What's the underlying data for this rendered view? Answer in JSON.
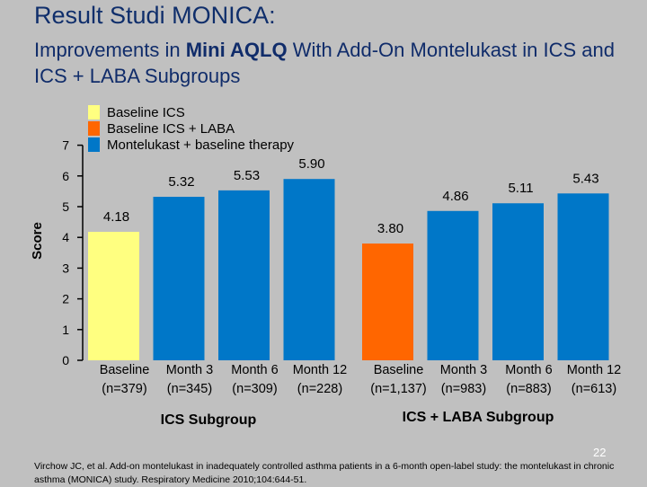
{
  "slide": {
    "title": "Result Studi MONICA:",
    "subtitle_pre": "Improvements in ",
    "subtitle_bold": "Mini AQLQ",
    "subtitle_post": " With Add-On Montelukast in ICS and ICS + LABA Subgroups",
    "page_number": "22",
    "citation": "Virchow JC, et al. Add-on montelukast in inadequately controlled asthma patients in a 6-month open-label study: the montelukast in chronic asthma (MONICA) study. Respiratory Medicine 2010;104:644-51."
  },
  "chart_data": {
    "type": "bar",
    "title": "Improvements in Mini AQLQ With Add-On Montelukast in ICS and ICS + LABA Subgroups",
    "xlabel": "",
    "ylabel": "Score",
    "ylim": [
      0,
      7
    ],
    "yticks": [
      "0",
      "1",
      "2",
      "3",
      "4",
      "5",
      "6",
      "7"
    ],
    "legend": [
      {
        "name": "Baseline ICS",
        "color": "#ffff80"
      },
      {
        "name": "Baseline ICS + LABA",
        "color": "#ff6600"
      },
      {
        "name": "Montelukast + baseline therapy",
        "color": "#0077c8"
      }
    ],
    "groups": [
      {
        "name": "ICS Subgroup",
        "bars": [
          {
            "label": "Baseline",
            "n": "(n=379)",
            "value": 4.18,
            "value_label": "4.18",
            "series": "Baseline ICS",
            "color": "#ffff80"
          },
          {
            "label": "Month 3",
            "n": "(n=345)",
            "value": 5.32,
            "value_label": "5.32",
            "series": "Montelukast + baseline therapy",
            "color": "#0077c8"
          },
          {
            "label": "Month 6",
            "n": "(n=309)",
            "value": 5.53,
            "value_label": "5.53",
            "series": "Montelukast + baseline therapy",
            "color": "#0077c8"
          },
          {
            "label": "Month 12",
            "n": "(n=228)",
            "value": 5.9,
            "value_label": "5.90",
            "series": "Montelukast + baseline therapy",
            "color": "#0077c8"
          }
        ]
      },
      {
        "name": "ICS + LABA Subgroup",
        "bars": [
          {
            "label": "Baseline",
            "n": "(n=1,137)",
            "value": 3.8,
            "value_label": "3.80",
            "series": "Baseline ICS + LABA",
            "color": "#ff6600"
          },
          {
            "label": "Month 3",
            "n": "(n=983)",
            "value": 4.86,
            "value_label": "4.86",
            "series": "Montelukast + baseline therapy",
            "color": "#0077c8"
          },
          {
            "label": "Month 6",
            "n": "(n=883)",
            "value": 5.11,
            "value_label": "5.11",
            "series": "Montelukast + baseline therapy",
            "color": "#0077c8"
          },
          {
            "label": "Month 12",
            "n": "(n=613)",
            "value": 5.43,
            "value_label": "5.43",
            "series": "Montelukast + baseline therapy",
            "color": "#0077c8"
          }
        ]
      }
    ]
  }
}
